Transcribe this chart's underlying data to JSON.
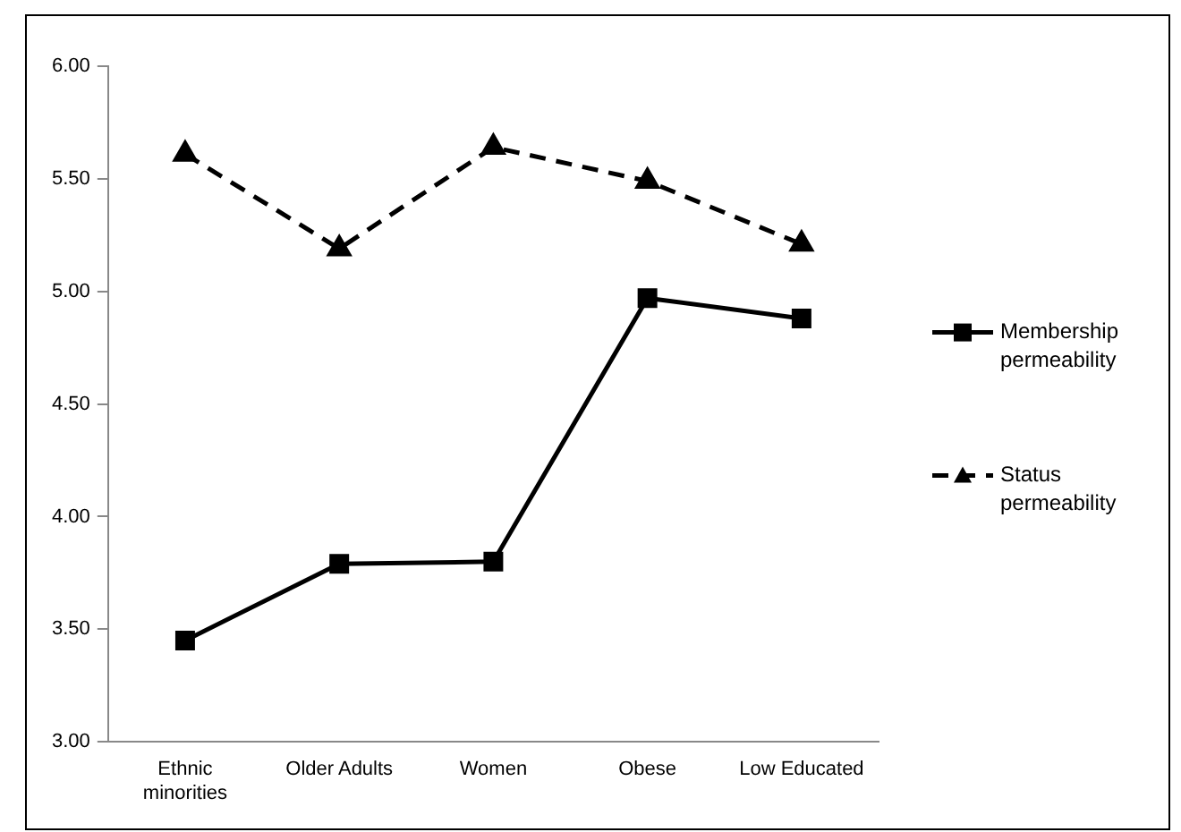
{
  "chart_data": {
    "type": "line",
    "categories": [
      "Ethnic minorities",
      "Older Adults",
      "Women",
      "Obese",
      "Low Educated"
    ],
    "series": [
      {
        "name": "Membership permeability",
        "color": "#000000",
        "values": [
          3.45,
          3.79,
          3.8,
          4.97,
          4.88
        ],
        "marker": "square",
        "line_style": "solid"
      },
      {
        "name": "Status permeability",
        "color": "#000000",
        "values": [
          5.61,
          5.19,
          5.64,
          5.49,
          5.21
        ],
        "marker": "triangle",
        "line_style": "dashed"
      }
    ],
    "ylim": [
      3,
      6
    ],
    "yticks": [
      {
        "value": 3,
        "label": "3.00"
      },
      {
        "value": 3.5,
        "label": "3.50"
      },
      {
        "value": 4,
        "label": "4.00"
      },
      {
        "value": 4.5,
        "label": "4.50"
      },
      {
        "value": 5,
        "label": "5.00"
      },
      {
        "value": 5.5,
        "label": "5.50"
      },
      {
        "value": 6,
        "label": "6.00"
      }
    ],
    "grid": false,
    "legend": "right"
  }
}
